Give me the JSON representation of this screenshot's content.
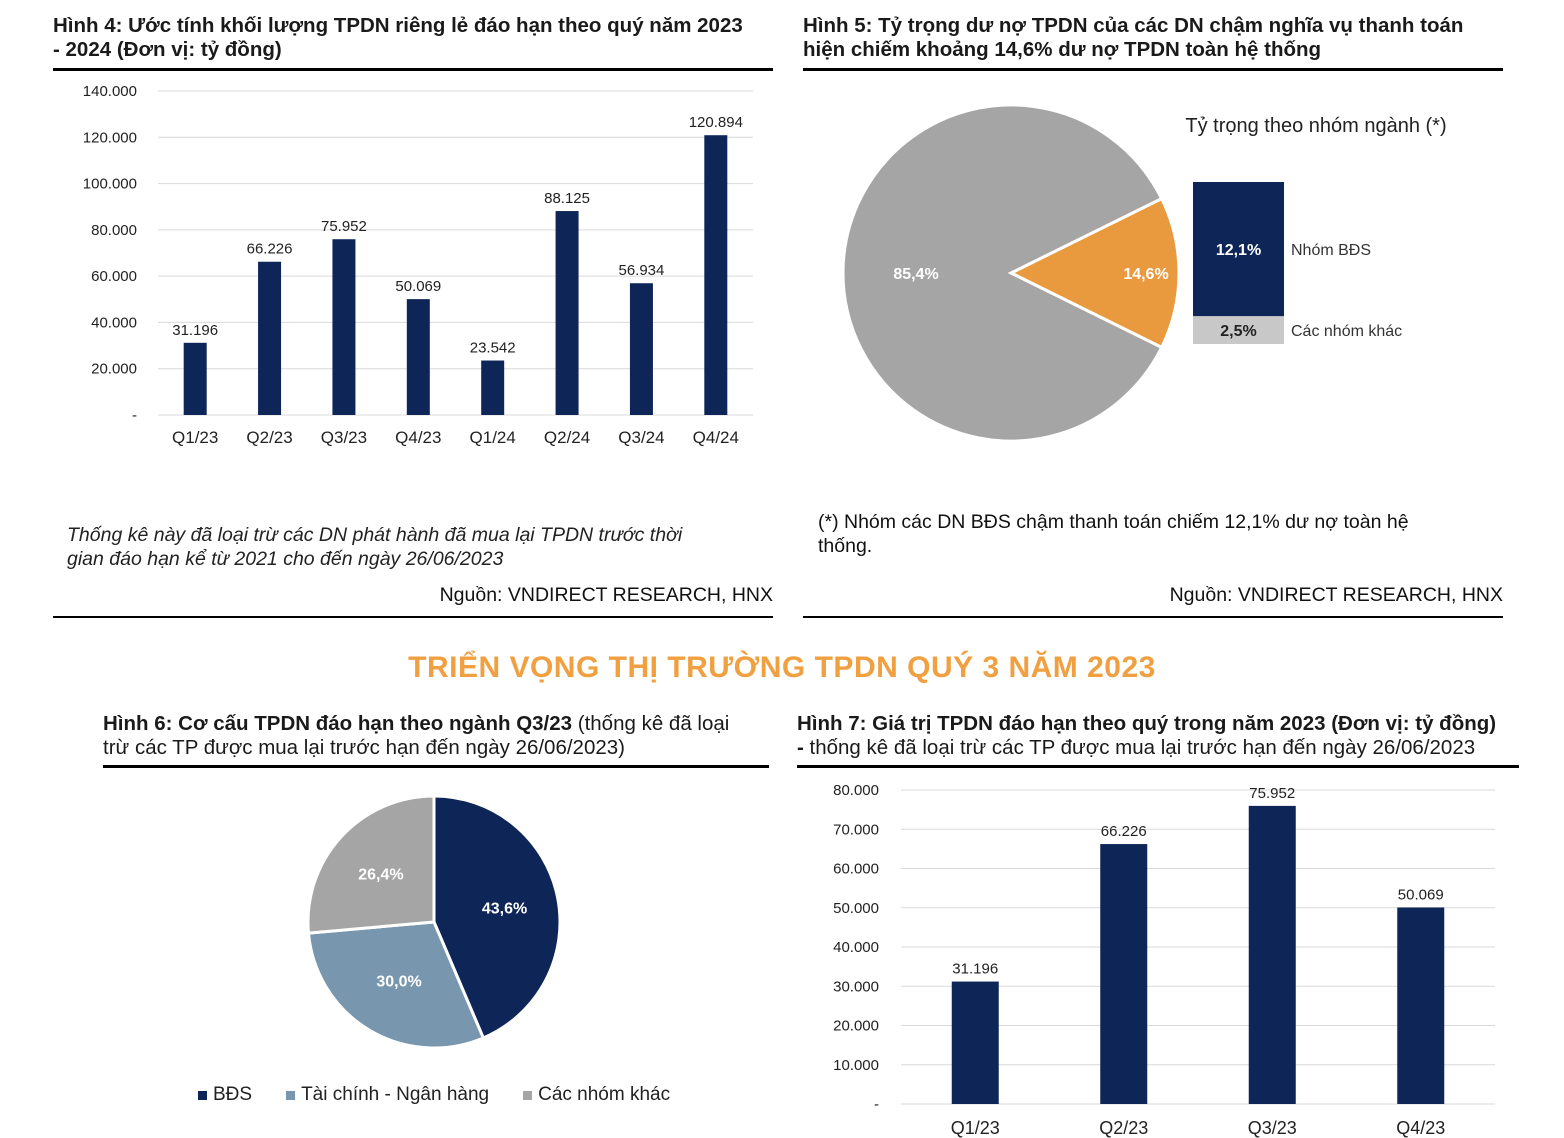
{
  "fig4": {
    "title_line1": "Hình 4: Ước tính khối lượng TPDN riêng lẻ đáo hạn theo quý năm 2023",
    "title_line2": "- 2024 (Đơn vị: tỷ đồng)",
    "note_line1": "Thống kê này đã loại trừ các DN phát hành đã mua lại TPDN trước thời",
    "note_line2": "gian đáo hạn kể từ 2021 cho đến ngày 26/06/2023",
    "source": "Nguồn: VNDIRECT RESEARCH, HNX"
  },
  "fig5": {
    "title_line1": "Hình 5: Tỷ trọng dư nợ TPDN của các DN chậm nghĩa vụ thanh toán",
    "title_line2": "hiện chiếm khoảng 14,6% dư nợ TPDN toàn hệ thống",
    "subtitle": "Tỷ trọng theo nhóm ngành (*)",
    "note_line1": "(*) Nhóm các DN BĐS chậm thanh toán chiếm 12,1% dư nợ toàn hệ",
    "note_line2": "thống.",
    "source": "Nguồn: VNDIRECT RESEARCH, HNX"
  },
  "section_heading": "TRIỂN VỌNG THỊ TRƯỜNG TPDN QUÝ 3 NĂM 2023",
  "fig6": {
    "title_bold": "Hình 6: Cơ cấu TPDN đáo hạn theo ngành Q3/23",
    "title_rest": " (thống kê đã loại",
    "title_line2": "trừ các TP được mua lại trước hạn đến ngày 26/06/2023)"
  },
  "fig7": {
    "title_bold": "Hình 7: Giá trị TPDN đáo hạn theo quý trong năm 2023 (Đơn vị: tỷ đồng)",
    "title_line2_bold": "-",
    "title_line2": " thống kê đã loại trừ các TP được mua lại trước hạn đến ngày 26/06/2023"
  },
  "colors": {
    "navy": "#0e2558",
    "orange": "#e99a3f",
    "gray": "#a5a5a5",
    "lightgray": "#c8c8c8",
    "steel": "#7896ad",
    "heading": "#f0a040"
  },
  "chart_data": [
    {
      "id": "fig4",
      "type": "bar",
      "categories": [
        "Q1/23",
        "Q2/23",
        "Q3/23",
        "Q4/23",
        "Q1/24",
        "Q2/24",
        "Q3/24",
        "Q4/24"
      ],
      "values": [
        31196,
        66226,
        75952,
        50069,
        23542,
        88125,
        56934,
        120894
      ],
      "labels": [
        "31.196",
        "66.226",
        "75.952",
        "50.069",
        "23.542",
        "88.125",
        "56.934",
        "120.894"
      ],
      "yticks": [
        "-",
        "20.000",
        "40.000",
        "60.000",
        "80.000",
        "100.000",
        "120.000",
        "140.000"
      ],
      "ylim": [
        0,
        140000
      ],
      "grid": true
    },
    {
      "id": "fig5",
      "type": "pie",
      "slices": [
        {
          "label": "85,4%",
          "value": 85.4,
          "color": "#a5a5a5"
        },
        {
          "label": "14,6%",
          "value": 14.6,
          "color": "#e99a3f"
        }
      ],
      "breakdown": [
        {
          "value_label": "12,1%",
          "name": "Nhóm BĐS",
          "value": 12.1
        },
        {
          "value_label": "2,5%",
          "name": "Các nhóm khác",
          "value": 2.5
        }
      ]
    },
    {
      "id": "fig6",
      "type": "pie",
      "slices": [
        {
          "name": "BĐS",
          "label": "43,6%",
          "value": 43.6,
          "color": "#0e2558"
        },
        {
          "name": "Tài chính - Ngân hàng",
          "label": "30,0%",
          "value": 30.0,
          "color": "#7896ad"
        },
        {
          "name": "Các nhóm khác",
          "label": "26,4%",
          "value": 26.4,
          "color": "#a5a5a5"
        }
      ],
      "legend": [
        "BĐS",
        "Tài chính - Ngân hàng",
        "Các nhóm khác"
      ]
    },
    {
      "id": "fig7",
      "type": "bar",
      "categories": [
        "Q1/23",
        "Q2/23",
        "Q3/23",
        "Q4/23"
      ],
      "values": [
        31196,
        66226,
        75952,
        50069
      ],
      "labels": [
        "31.196",
        "66.226",
        "75.952",
        "50.069"
      ],
      "yticks": [
        "-",
        "10.000",
        "20.000",
        "30.000",
        "40.000",
        "50.000",
        "60.000",
        "70.000",
        "80.000"
      ],
      "ylim": [
        0,
        80000
      ],
      "grid": true
    }
  ]
}
